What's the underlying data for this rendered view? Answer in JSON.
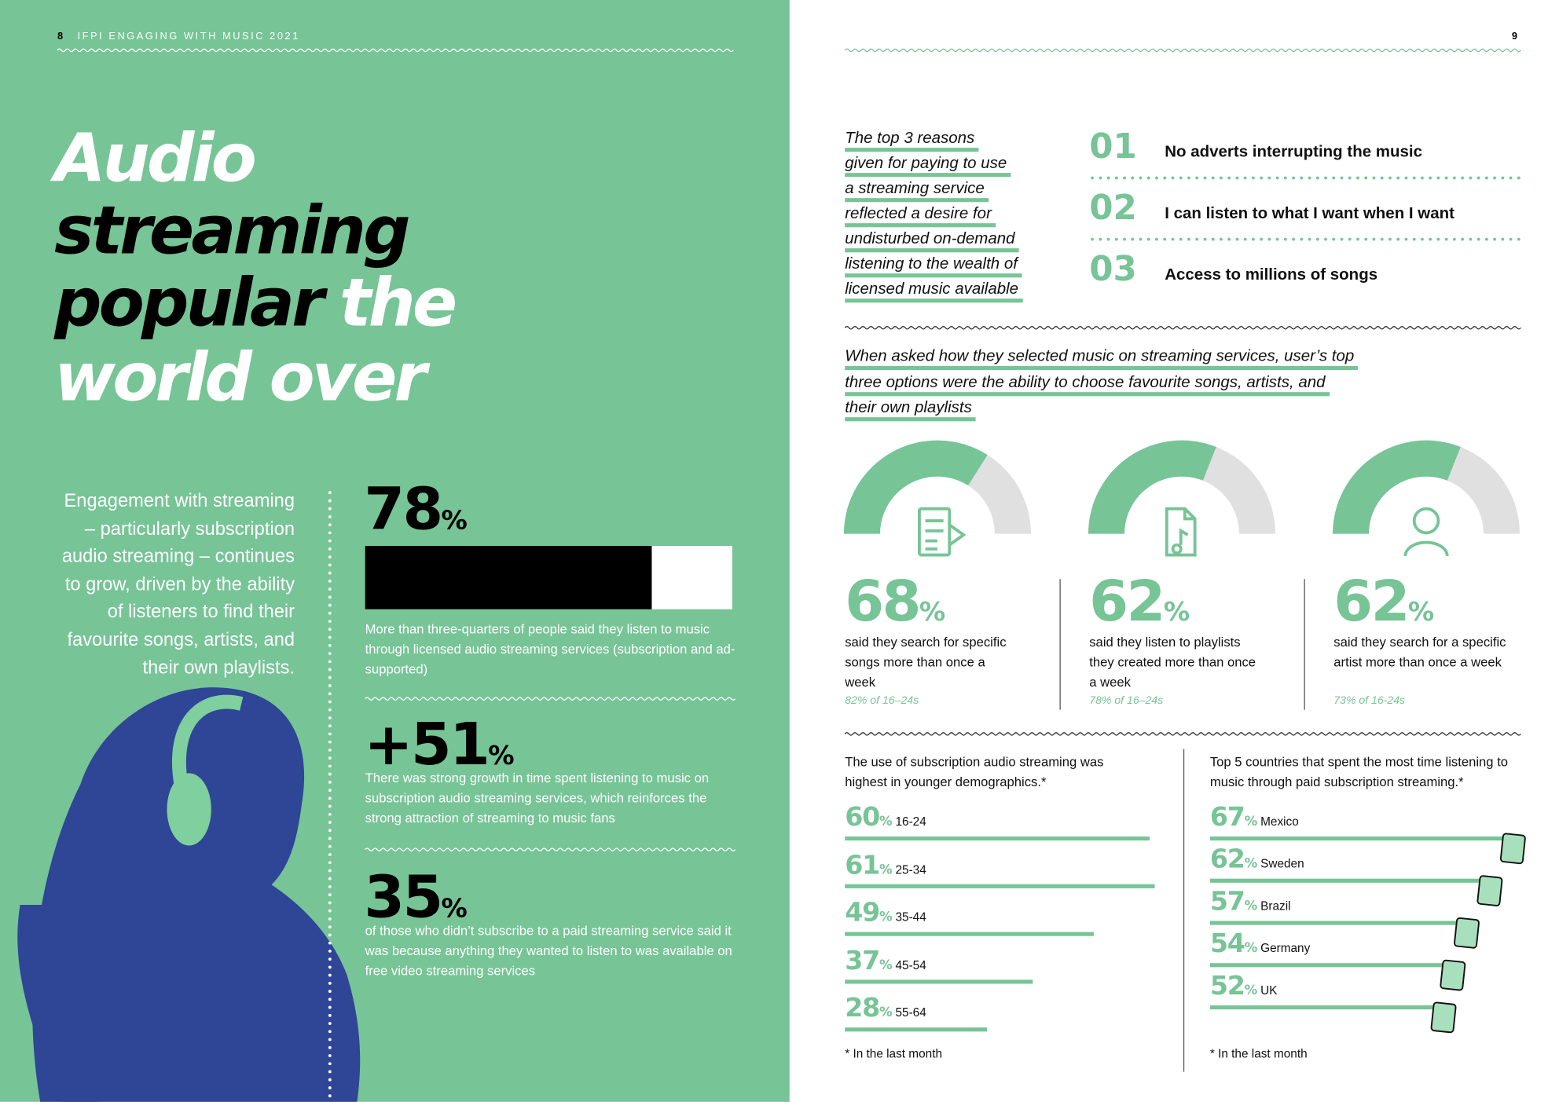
{
  "left": {
    "page_number": "8",
    "running_head": "IFPI ENGAGING WITH MUSIC 2021",
    "title": [
      [
        {
          "text": "Audio",
          "color": "#ffffff"
        }
      ],
      [
        {
          "text": "streaming",
          "color": "#000000"
        }
      ],
      [
        {
          "text": "popular",
          "color": "#000000"
        },
        {
          "text": "the",
          "color": "#ffffff"
        }
      ],
      [
        {
          "text": "world over",
          "color": "#ffffff"
        }
      ]
    ],
    "intro": "Engagement with streaming – particularly subscription audio streaming – continues to grow, driven by the ability of listeners to find their favourite songs, artists, and their own playlists.",
    "stats": [
      {
        "value": 78,
        "unit": "%",
        "text": "More than three-quarters of people said they listen to music through licensed audio streaming services (subscription and ad-supported)"
      },
      {
        "sign": "+",
        "value": 51,
        "unit": "%",
        "text": "There was strong growth in time spent listening to music on subscription audio streaming services, which reinforces the strong attraction of streaming to music fans"
      },
      {
        "value": 35,
        "unit": "%",
        "text": "of those who didn’t subscribe to a paid streaming service said it was because anything they wanted to listen to was available on free video streaming services"
      }
    ]
  },
  "right": {
    "page_number": "9",
    "reasons_intro": [
      "The top 3 reasons",
      "given for paying to use",
      "a streaming service",
      "reflected a desire for",
      "undisturbed on-demand",
      "listening to the wealth of",
      "licensed music available"
    ],
    "reasons": [
      {
        "rank": "01",
        "text": "No adverts interrupting the music"
      },
      {
        "rank": "02",
        "text": "I can listen to what I want when I want"
      },
      {
        "rank": "03",
        "text": "Access to millions of songs"
      }
    ],
    "selection_intro": [
      "When asked how they selected music on streaming services, user’s top",
      "three options were the ability to choose favourite songs, artists, and",
      "their own playlists"
    ],
    "gauges": [
      {
        "value": 68,
        "unit": "%",
        "text": "said they search for specific songs more than once a week",
        "note": "82% of 16–24s"
      },
      {
        "value": 62,
        "unit": "%",
        "text": "said they listen to playlists they created more than once a week",
        "note": "78% of 16–24s"
      },
      {
        "value": 62,
        "unit": "%",
        "text": "said they search for a specific artist more than once a week",
        "note": "73% of 16-24s"
      }
    ],
    "age_chart": {
      "title": "The use of subscription audio streaming was highest in younger demographics.*",
      "color": "#77c496",
      "items": [
        {
          "value": 60,
          "unit": "%",
          "label": "16-24"
        },
        {
          "value": 61,
          "unit": "%",
          "label": "25-34"
        },
        {
          "value": 49,
          "unit": "%",
          "label": "35-44"
        },
        {
          "value": 37,
          "unit": "%",
          "label": "45-54"
        },
        {
          "value": 28,
          "unit": "%",
          "label": "55-64"
        }
      ],
      "footnote": "* In the last month"
    },
    "country_chart": {
      "title": "Top 5 countries that spent the most time listening to music through paid subscription streaming.*",
      "color": "#77c496",
      "items": [
        {
          "value": 67,
          "unit": "%",
          "label": "Mexico"
        },
        {
          "value": 62,
          "unit": "%",
          "label": "Sweden"
        },
        {
          "value": 57,
          "unit": "%",
          "label": "Brazil"
        },
        {
          "value": 54,
          "unit": "%",
          "label": "Germany"
        },
        {
          "value": 52,
          "unit": "%",
          "label": "UK"
        }
      ],
      "footnote": "* In the last month"
    }
  }
}
